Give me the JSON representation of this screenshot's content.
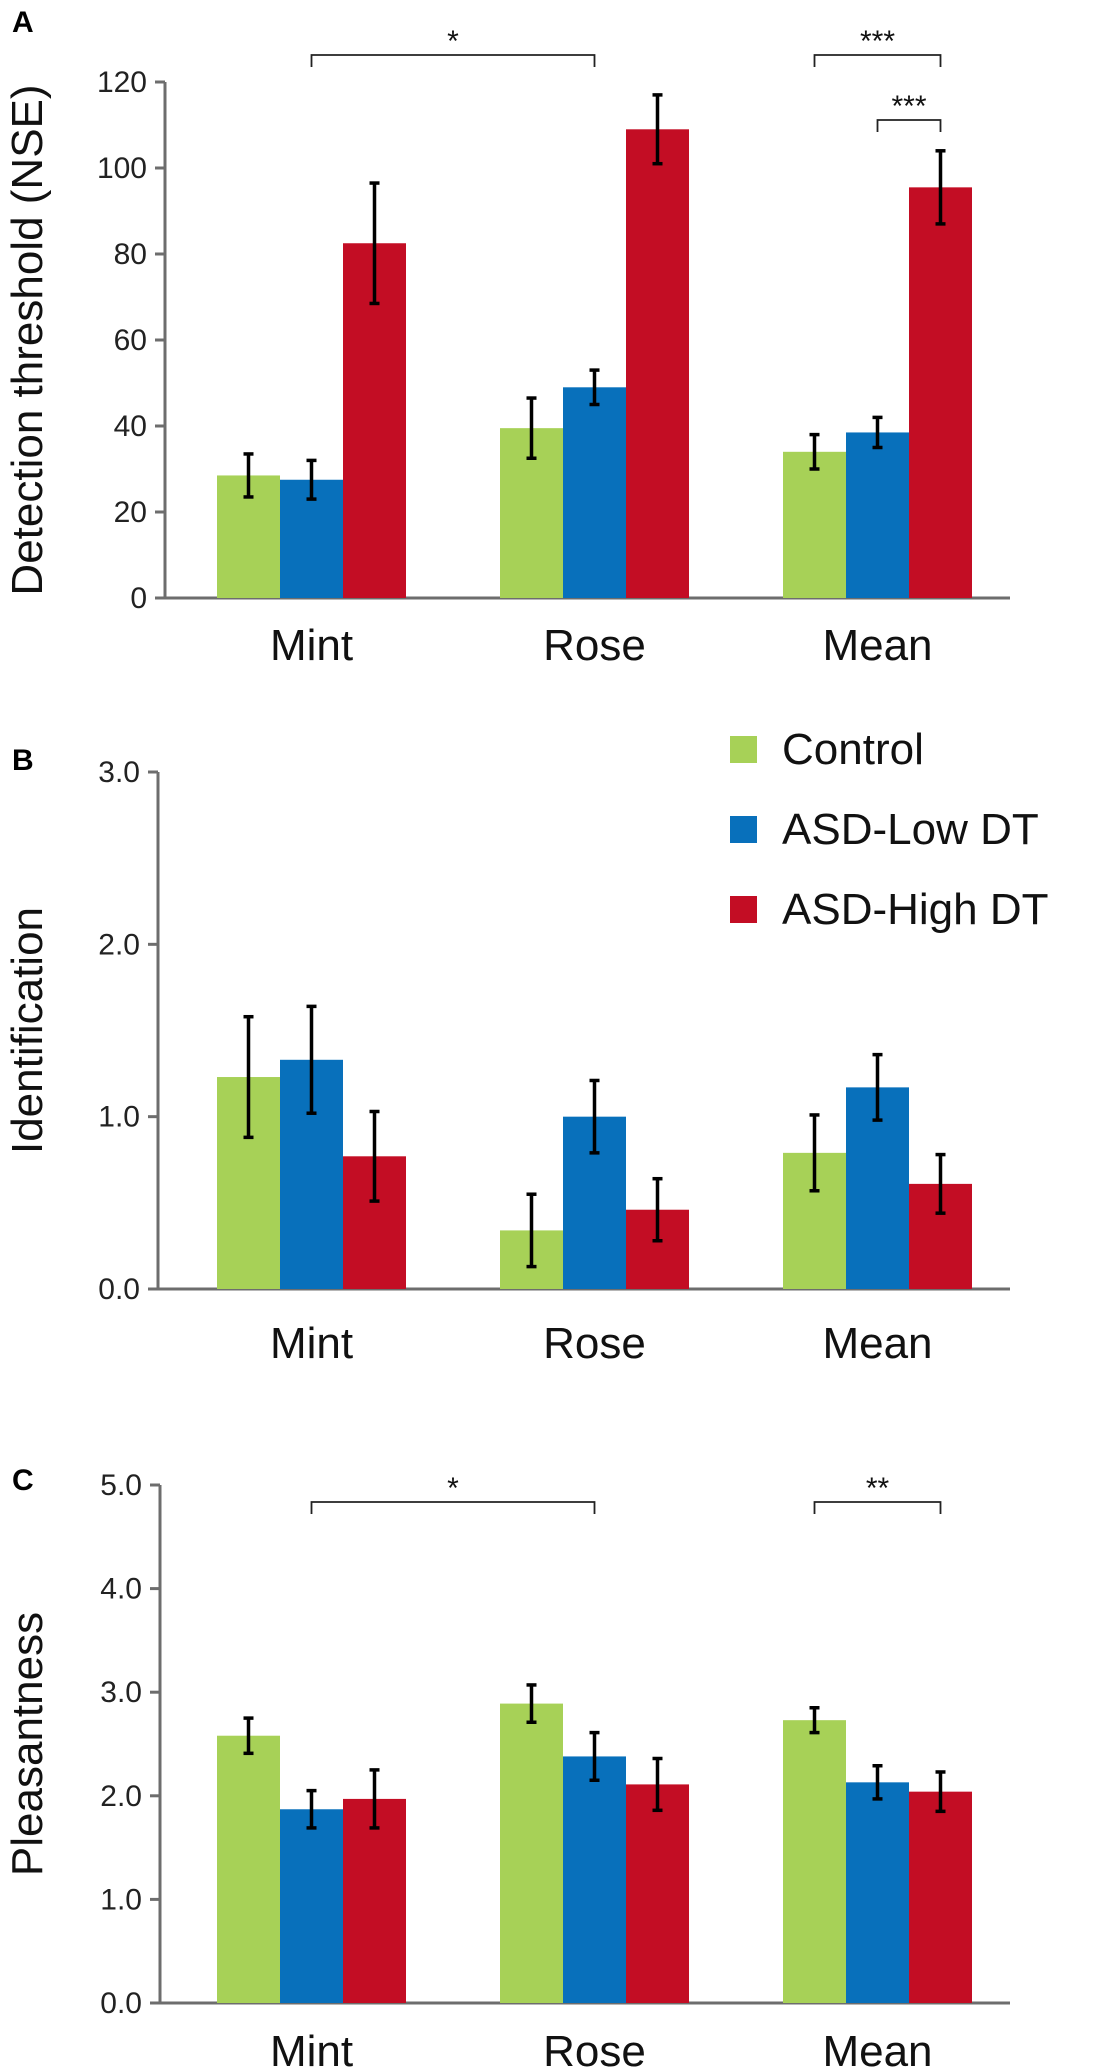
{
  "legend": [
    {
      "name": "Control",
      "color": "#a7d157"
    },
    {
      "name": "ASD-Low DT",
      "color": "#0870bb"
    },
    {
      "name": "ASD-High DT",
      "color": "#c30d24"
    }
  ],
  "chart_data": [
    {
      "panel": "A",
      "type": "bar",
      "ylabel": "Detection threshold (NSE)",
      "categories": [
        "Mint",
        "Rose",
        "Mean"
      ],
      "ylim": [
        0,
        120
      ],
      "yticks": [
        "0",
        "20",
        "40",
        "60",
        "80",
        "100",
        "120"
      ],
      "series": [
        {
          "name": "Control",
          "values": [
            28.5,
            39.5,
            34
          ],
          "errors": [
            5,
            7,
            4
          ]
        },
        {
          "name": "ASD-Low DT",
          "values": [
            27.5,
            49,
            38.5
          ],
          "errors": [
            4.5,
            4,
            3.5
          ]
        },
        {
          "name": "ASD-High DT",
          "values": [
            82.5,
            109,
            95.5
          ],
          "errors": [
            14,
            8,
            8.5
          ]
        }
      ],
      "significance": [
        {
          "from": {
            "cat": 0,
            "series": 1
          },
          "to": {
            "cat": 1,
            "series": 1
          },
          "label": "*",
          "level": 0
        },
        {
          "from": {
            "cat": 2,
            "series": 0
          },
          "to": {
            "cat": 2,
            "series": 2
          },
          "label": "***",
          "level": 0
        },
        {
          "from": {
            "cat": 2,
            "series": 1
          },
          "to": {
            "cat": 2,
            "series": 2
          },
          "label": "***",
          "level": 1
        }
      ]
    },
    {
      "panel": "B",
      "type": "bar",
      "ylabel": "Identification",
      "categories": [
        "Mint",
        "Rose",
        "Mean"
      ],
      "ylim": [
        0,
        3.0
      ],
      "yticks": [
        "0.0",
        "1.0",
        "2.0",
        "3.0"
      ],
      "series": [
        {
          "name": "Control",
          "values": [
            1.23,
            0.34,
            0.79
          ],
          "errors": [
            0.35,
            0.21,
            0.22
          ]
        },
        {
          "name": "ASD-Low DT",
          "values": [
            1.33,
            1.0,
            1.17
          ],
          "errors": [
            0.31,
            0.21,
            0.19
          ]
        },
        {
          "name": "ASD-High DT",
          "values": [
            0.77,
            0.46,
            0.61
          ],
          "errors": [
            0.26,
            0.18,
            0.17
          ]
        }
      ],
      "significance": []
    },
    {
      "panel": "C",
      "type": "bar",
      "ylabel": "Pleasantness",
      "categories": [
        "Mint",
        "Rose",
        "Mean"
      ],
      "ylim": [
        0,
        5.0
      ],
      "yticks": [
        "0.0",
        "1.0",
        "2.0",
        "3.0",
        "4.0",
        "5.0"
      ],
      "series": [
        {
          "name": "Control",
          "values": [
            2.58,
            2.89,
            2.73
          ],
          "errors": [
            0.17,
            0.18,
            0.12
          ]
        },
        {
          "name": "ASD-Low DT",
          "values": [
            1.87,
            2.38,
            2.13
          ],
          "errors": [
            0.18,
            0.23,
            0.16
          ]
        },
        {
          "name": "ASD-High DT",
          "values": [
            1.97,
            2.11,
            2.04
          ],
          "errors": [
            0.28,
            0.25,
            0.19
          ]
        }
      ],
      "significance": [
        {
          "from": {
            "cat": 0,
            "series": 1
          },
          "to": {
            "cat": 1,
            "series": 1
          },
          "label": "*",
          "level": 0
        },
        {
          "from": {
            "cat": 2,
            "series": 0
          },
          "to": {
            "cat": 2,
            "series": 2
          },
          "label": "**",
          "level": 0
        }
      ]
    }
  ]
}
